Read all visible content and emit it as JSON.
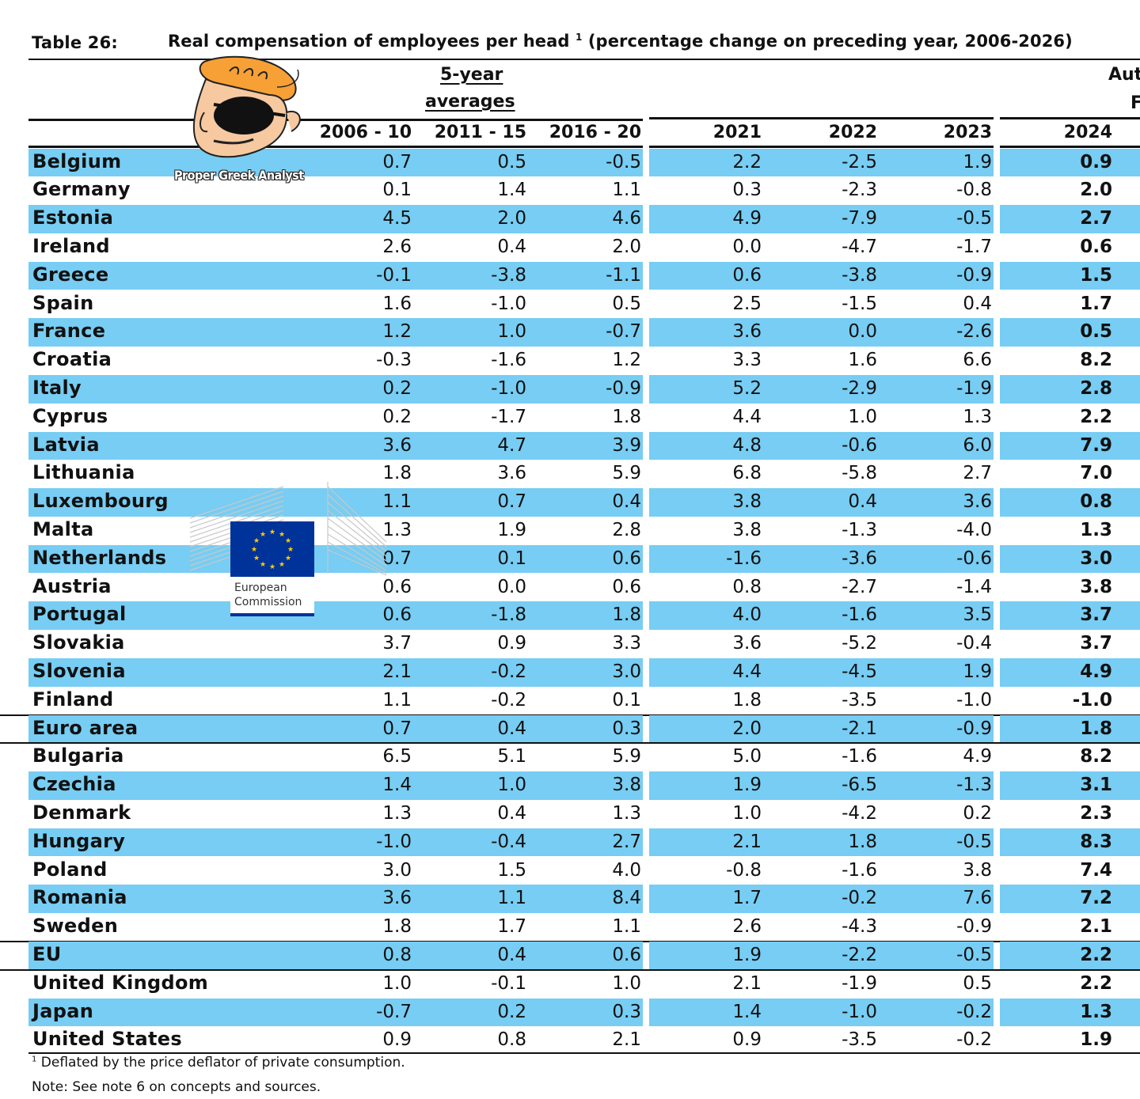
{
  "table": {
    "label": "Table 26:",
    "title": "Real compensation of employees per head",
    "title_sup": "1",
    "title_rest": "(percentage change on preceding year, 2006-2026)",
    "group_header_line1": "5-year",
    "group_header_line2": "averages",
    "right_header_line1": "Aut",
    "right_header_line2": "F",
    "columns": [
      "2006 - 10",
      "2011 - 15",
      "2016 - 20",
      "2021",
      "2022",
      "2023",
      "2024"
    ],
    "rows": [
      {
        "country": "Belgium",
        "values": [
          "0.7",
          "0.5",
          "-0.5",
          "2.2",
          "-2.5",
          "1.9",
          "0.9"
        ]
      },
      {
        "country": "Germany",
        "values": [
          "0.1",
          "1.4",
          "1.1",
          "0.3",
          "-2.3",
          "-0.8",
          "2.0"
        ]
      },
      {
        "country": "Estonia",
        "values": [
          "4.5",
          "2.0",
          "4.6",
          "4.9",
          "-7.9",
          "-0.5",
          "2.7"
        ]
      },
      {
        "country": "Ireland",
        "values": [
          "2.6",
          "0.4",
          "2.0",
          "0.0",
          "-4.7",
          "-1.7",
          "0.6"
        ]
      },
      {
        "country": "Greece",
        "values": [
          "-0.1",
          "-3.8",
          "-1.1",
          "0.6",
          "-3.8",
          "-0.9",
          "1.5"
        ]
      },
      {
        "country": "Spain",
        "values": [
          "1.6",
          "-1.0",
          "0.5",
          "2.5",
          "-1.5",
          "0.4",
          "1.7"
        ]
      },
      {
        "country": "France",
        "values": [
          "1.2",
          "1.0",
          "-0.7",
          "3.6",
          "0.0",
          "-2.6",
          "0.5"
        ]
      },
      {
        "country": "Croatia",
        "values": [
          "-0.3",
          "-1.6",
          "1.2",
          "3.3",
          "1.6",
          "6.6",
          "8.2"
        ]
      },
      {
        "country": "Italy",
        "values": [
          "0.2",
          "-1.0",
          "-0.9",
          "5.2",
          "-2.9",
          "-1.9",
          "2.8"
        ]
      },
      {
        "country": "Cyprus",
        "values": [
          "0.2",
          "-1.7",
          "1.8",
          "4.4",
          "1.0",
          "1.3",
          "2.2"
        ]
      },
      {
        "country": "Latvia",
        "values": [
          "3.6",
          "4.7",
          "3.9",
          "4.8",
          "-0.6",
          "6.0",
          "7.9"
        ]
      },
      {
        "country": "Lithuania",
        "values": [
          "1.8",
          "3.6",
          "5.9",
          "6.8",
          "-5.8",
          "2.7",
          "7.0"
        ]
      },
      {
        "country": "Luxembourg",
        "values": [
          "1.1",
          "0.7",
          "0.4",
          "3.8",
          "0.4",
          "3.6",
          "0.8"
        ]
      },
      {
        "country": "Malta",
        "values": [
          "1.3",
          "1.9",
          "2.8",
          "3.8",
          "-1.3",
          "-4.0",
          "1.3"
        ]
      },
      {
        "country": "Netherlands",
        "values": [
          "0.7",
          "0.1",
          "0.6",
          "-1.6",
          "-3.6",
          "-0.6",
          "3.0"
        ]
      },
      {
        "country": "Austria",
        "values": [
          "0.6",
          "0.0",
          "0.6",
          "0.8",
          "-2.7",
          "-1.4",
          "3.8"
        ]
      },
      {
        "country": "Portugal",
        "values": [
          "0.6",
          "-1.8",
          "1.8",
          "4.0",
          "-1.6",
          "3.5",
          "3.7"
        ]
      },
      {
        "country": "Slovakia",
        "values": [
          "3.7",
          "0.9",
          "3.3",
          "3.6",
          "-5.2",
          "-0.4",
          "3.7"
        ]
      },
      {
        "country": "Slovenia",
        "values": [
          "2.1",
          "-0.2",
          "3.0",
          "4.4",
          "-4.5",
          "1.9",
          "4.9"
        ]
      },
      {
        "country": "Finland",
        "values": [
          "1.1",
          "-0.2",
          "0.1",
          "1.8",
          "-3.5",
          "-1.0",
          "-1.0"
        ]
      },
      {
        "country": "Euro area",
        "values": [
          "0.7",
          "0.4",
          "0.3",
          "2.0",
          "-2.1",
          "-0.9",
          "1.8"
        ]
      },
      {
        "country": "Bulgaria",
        "values": [
          "6.5",
          "5.1",
          "5.9",
          "5.0",
          "-1.6",
          "4.9",
          "8.2"
        ]
      },
      {
        "country": "Czechia",
        "values": [
          "1.4",
          "1.0",
          "3.8",
          "1.9",
          "-6.5",
          "-1.3",
          "3.1"
        ]
      },
      {
        "country": "Denmark",
        "values": [
          "1.3",
          "0.4",
          "1.3",
          "1.0",
          "-4.2",
          "0.2",
          "2.3"
        ]
      },
      {
        "country": "Hungary",
        "values": [
          "-1.0",
          "-0.4",
          "2.7",
          "2.1",
          "1.8",
          "-0.5",
          "8.3"
        ]
      },
      {
        "country": "Poland",
        "values": [
          "3.0",
          "1.5",
          "4.0",
          "-0.8",
          "-1.6",
          "3.8",
          "7.4"
        ]
      },
      {
        "country": "Romania",
        "values": [
          "3.6",
          "1.1",
          "8.4",
          "1.7",
          "-0.2",
          "7.6",
          "7.2"
        ]
      },
      {
        "country": "Sweden",
        "values": [
          "1.8",
          "1.7",
          "1.1",
          "2.6",
          "-4.3",
          "-0.9",
          "2.1"
        ]
      },
      {
        "country": "EU",
        "values": [
          "0.8",
          "0.4",
          "0.6",
          "1.9",
          "-2.2",
          "-0.5",
          "2.2"
        ]
      },
      {
        "country": "United Kingdom",
        "values": [
          "1.0",
          "-0.1",
          "1.0",
          "2.1",
          "-1.9",
          "0.5",
          "2.2"
        ]
      },
      {
        "country": "Japan",
        "values": [
          "-0.7",
          "0.2",
          "0.3",
          "1.4",
          "-1.0",
          "-0.2",
          "1.3"
        ]
      },
      {
        "country": "United States",
        "values": [
          "0.9",
          "0.8",
          "2.1",
          "0.9",
          "-3.5",
          "-0.2",
          "1.9"
        ]
      }
    ],
    "footnote_sup": "1",
    "footnote": "Deflated by the price deflator of private consumption.",
    "note": "Note: See note 6 on concepts and sources."
  },
  "watermark": {
    "text": "Proper Greek Analyst",
    "icon": "cartoon-character-eyepatch-icon"
  },
  "ec_logo": {
    "line1": "European",
    "line2": "Commission",
    "flag_blue": "#003399",
    "star_yellow": "#ffcc00"
  },
  "colors": {
    "row_shade": "#77cdf3"
  }
}
